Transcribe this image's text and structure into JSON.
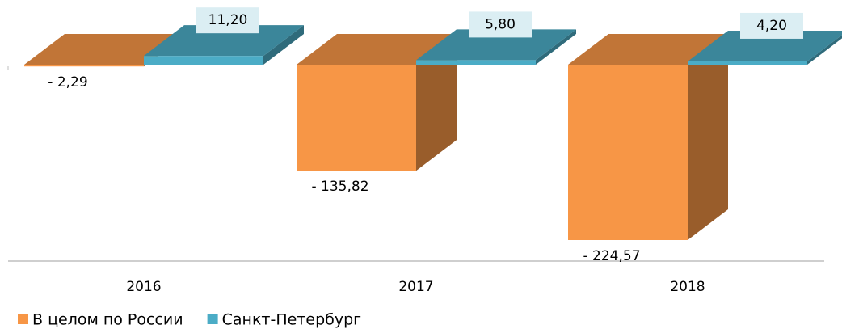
{
  "chart_data": {
    "type": "bar3d",
    "categories": [
      "2016",
      "2017",
      "2018"
    ],
    "series": [
      {
        "name": "В целом по России",
        "color": "#f79646",
        "values": [
          -2.29,
          -135.82,
          -224.57
        ],
        "value_labels": [
          "- 2,29",
          "- 135,82",
          "- 224,57"
        ]
      },
      {
        "name": "Санкт-Петербург",
        "color": "#4bacc6",
        "values": [
          11.2,
          5.8,
          4.2
        ],
        "value_labels": [
          "11,20",
          "5,80",
          "4,20"
        ]
      }
    ],
    "legend": "bottom-left"
  }
}
